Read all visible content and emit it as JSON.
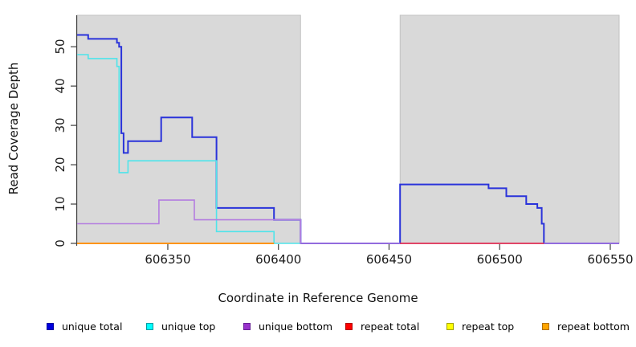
{
  "chart_data": {
    "type": "line",
    "title": "",
    "xlabel": "Coordinate in Reference Genome",
    "ylabel": "Read Coverage Depth",
    "x_ticks": [
      606350,
      606400,
      606450,
      606500,
      606550
    ],
    "y_ticks": [
      0,
      10,
      20,
      30,
      40,
      50
    ],
    "xlim": [
      606309,
      606554
    ],
    "ylim": [
      0,
      58
    ],
    "grid": false,
    "background_color": "#ffffff",
    "shaded_region_color": "#d9d9d9",
    "shaded_region_border": "#c2c2c2",
    "shaded_regions": [
      [
        606309,
        606410
      ],
      [
        606455,
        606554
      ]
    ],
    "unshaded_gap": [
      606410,
      606455
    ],
    "axis_color": "#404040",
    "series": [
      {
        "name": "unique total",
        "color": "#2a33da",
        "width": 2,
        "steps": [
          [
            606309,
            53
          ],
          [
            606314,
            52
          ],
          [
            606327,
            51
          ],
          [
            606328,
            50
          ],
          [
            606329,
            28
          ],
          [
            606330,
            23
          ],
          [
            606332,
            26
          ],
          [
            606347,
            32
          ],
          [
            606361,
            27
          ],
          [
            606372,
            9
          ],
          [
            606398,
            6
          ],
          [
            606410,
            0
          ],
          [
            606455,
            15
          ],
          [
            606495,
            14
          ],
          [
            606503,
            12
          ],
          [
            606512,
            10
          ],
          [
            606517,
            9
          ],
          [
            606519,
            5
          ],
          [
            606520,
            0
          ],
          [
            606554,
            0
          ]
        ]
      },
      {
        "name": "unique top",
        "color": "#4fe4ea",
        "width": 1.6,
        "steps": [
          [
            606309,
            48
          ],
          [
            606314,
            47
          ],
          [
            606327,
            45
          ],
          [
            606328,
            18
          ],
          [
            606332,
            21
          ],
          [
            606372,
            3
          ],
          [
            606398,
            0
          ],
          [
            606410,
            0
          ]
        ]
      },
      {
        "name": "unique bottom",
        "color": "#b47ee0",
        "width": 1.6,
        "steps": [
          [
            606309,
            5
          ],
          [
            606346,
            11
          ],
          [
            606362,
            6
          ],
          [
            606410,
            0
          ],
          [
            606554,
            0
          ]
        ]
      },
      {
        "name": "repeat total",
        "color": "#e6203c",
        "width": 1.6,
        "steps": [
          [
            606455,
            0
          ],
          [
            606520,
            0
          ]
        ]
      },
      {
        "name": "repeat top",
        "color": "#ffff00",
        "width": 1.6,
        "steps": []
      },
      {
        "name": "repeat bottom",
        "color": "#ff9414",
        "width": 2,
        "steps": [
          [
            606309,
            0
          ],
          [
            606398,
            0
          ]
        ]
      }
    ],
    "legend": [
      {
        "label": "unique total",
        "color": "#0000dd",
        "border": "#0000a0"
      },
      {
        "label": "unique top",
        "color": "#00ffff",
        "border": "#009aa0"
      },
      {
        "label": "unique bottom",
        "color": "#9932cc",
        "border": "#681f96"
      },
      {
        "label": "repeat total",
        "color": "#ff0000",
        "border": "#b00000"
      },
      {
        "label": "repeat top",
        "color": "#ffff00",
        "border": "#a0a000"
      },
      {
        "label": "repeat bottom",
        "color": "#ffa500",
        "border": "#b06f00"
      }
    ]
  }
}
